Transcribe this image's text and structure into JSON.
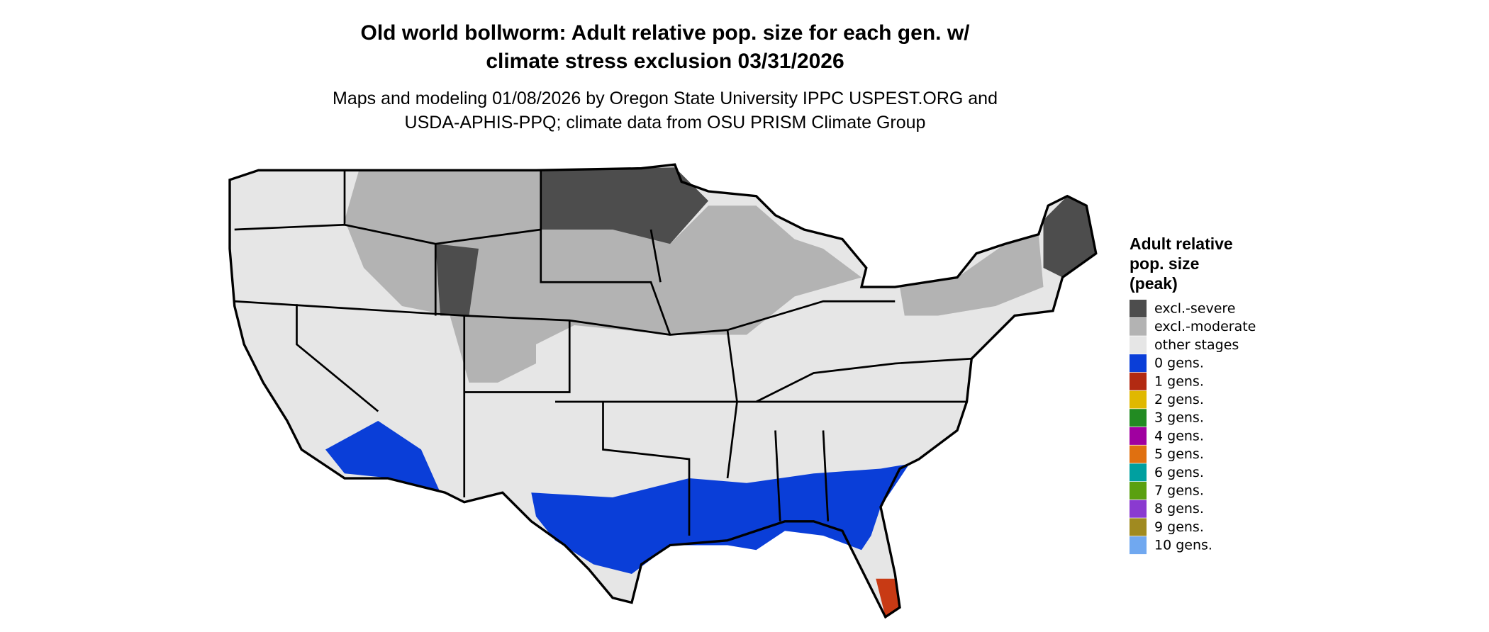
{
  "title_lines": [
    "Old world bollworm: Adult relative pop. size for each gen. w/",
    "climate stress exclusion 03/31/2026"
  ],
  "subtitle_lines": [
    "Maps and modeling 01/08/2026 by Oregon State University IPPC USPEST.ORG and",
    "USDA-APHIS-PPQ; climate data from OSU PRISM Climate Group"
  ],
  "legend": {
    "title_lines": [
      "Adult relative",
      "pop. size",
      "(peak)"
    ],
    "items": [
      {
        "label": "excl.-severe",
        "color": "#4d4d4d"
      },
      {
        "label": "excl.-moderate",
        "color": "#b3b3b3"
      },
      {
        "label": "other stages",
        "color": "#e6e6e6"
      },
      {
        "label": "0 gens.",
        "color": "#0a3ed8"
      },
      {
        "label": "1 gens.",
        "color": "#b22a12"
      },
      {
        "label": "2 gens.",
        "color": "#e0b800"
      },
      {
        "label": "3 gens.",
        "color": "#228b22"
      },
      {
        "label": "4 gens.",
        "color": "#a000a0"
      },
      {
        "label": "5 gens.",
        "color": "#e07010"
      },
      {
        "label": "6 gens.",
        "color": "#00a0a0"
      },
      {
        "label": "7 gens.",
        "color": "#5aa010"
      },
      {
        "label": "8 gens.",
        "color": "#8a3ad0"
      },
      {
        "label": "9 gens.",
        "color": "#a08a20"
      },
      {
        "label": "10 gens.",
        "color": "#70a8f0"
      }
    ]
  }
}
